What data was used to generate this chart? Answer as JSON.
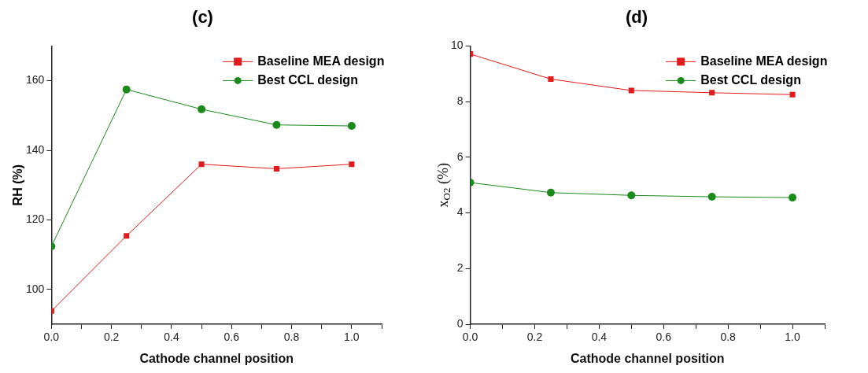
{
  "chart_data": [
    {
      "type": "line",
      "title": "(c)",
      "xlabel": "Cathode channel position",
      "ylabel": "RH (%)",
      "x": [
        0,
        0.25,
        0.5,
        0.75,
        1.0
      ],
      "series": [
        {
          "name": "Baseline MEA design",
          "color": "#e31a1c",
          "marker": "square",
          "values": [
            93.8,
            115.4,
            136.0,
            134.7,
            136.0
          ]
        },
        {
          "name": "Best CCL design",
          "color": "#1a8a1a",
          "marker": "circle",
          "values": [
            112.4,
            157.5,
            151.8,
            147.3,
            147.0
          ]
        }
      ],
      "xlim": [
        0,
        1.1
      ],
      "xticks": [
        {
          "value": 0,
          "label": "0.0"
        },
        {
          "value": 0.1,
          "label": null
        },
        {
          "value": 0.2,
          "label": "0.2"
        },
        {
          "value": 0.3,
          "label": null
        },
        {
          "value": 0.4,
          "label": "0.4"
        },
        {
          "value": 0.5,
          "label": null
        },
        {
          "value": 0.6,
          "label": "0.6"
        },
        {
          "value": 0.7,
          "label": null
        },
        {
          "value": 0.8,
          "label": "0.8"
        },
        {
          "value": 0.9,
          "label": null
        },
        {
          "value": 1.0,
          "label": "1.0"
        },
        {
          "value": 1.1,
          "label": null
        }
      ],
      "ylim": [
        90,
        170
      ],
      "yticks": [
        100,
        120,
        140,
        160
      ],
      "grid": false,
      "legend": "top right"
    },
    {
      "type": "line",
      "title": "(d)",
      "xlabel": "Cathode channel position",
      "ylabel": "x$_{O2}$ (%)",
      "x": [
        0,
        0.25,
        0.5,
        0.75,
        1.0
      ],
      "series": [
        {
          "name": "Baseline MEA design",
          "color": "#e31a1c",
          "marker": "square",
          "values": [
            9.71,
            8.81,
            8.4,
            8.32,
            8.25
          ]
        },
        {
          "name": "Best CCL design",
          "color": "#1a8a1a",
          "marker": "circle",
          "values": [
            5.09,
            4.73,
            4.63,
            4.58,
            4.55
          ]
        }
      ],
      "xlim": [
        0,
        1.1
      ],
      "xticks": [
        {
          "value": 0,
          "label": "0.0"
        },
        {
          "value": 0.1,
          "label": null
        },
        {
          "value": 0.2,
          "label": "0.2"
        },
        {
          "value": 0.3,
          "label": null
        },
        {
          "value": 0.4,
          "label": "0.4"
        },
        {
          "value": 0.5,
          "label": null
        },
        {
          "value": 0.6,
          "label": "0.6"
        },
        {
          "value": 0.7,
          "label": null
        },
        {
          "value": 0.8,
          "label": "0.8"
        },
        {
          "value": 0.9,
          "label": null
        },
        {
          "value": 1.0,
          "label": "1.0"
        },
        {
          "value": 1.1,
          "label": null
        }
      ],
      "ylim": [
        0,
        10
      ],
      "yticks": [
        0,
        2,
        4,
        6,
        8,
        10
      ],
      "grid": false,
      "legend": "top right"
    }
  ]
}
